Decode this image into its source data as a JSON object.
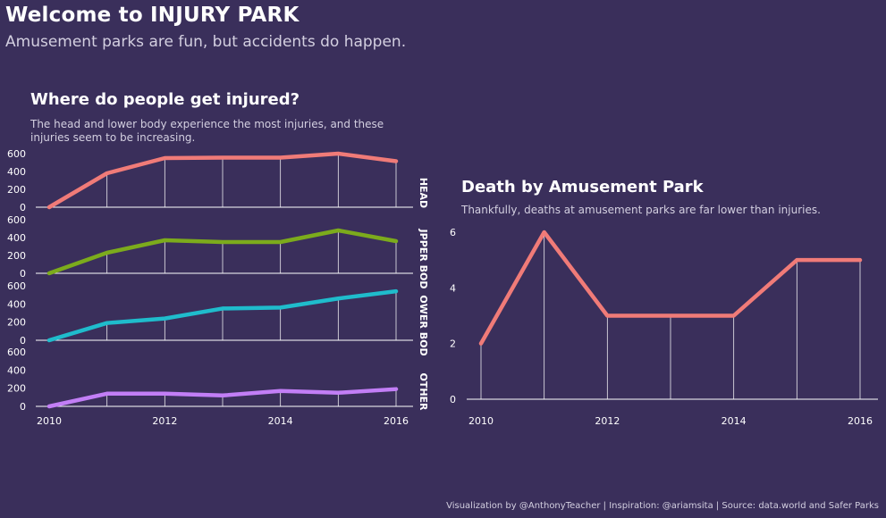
{
  "header": {
    "title": "Welcome to INJURY PARK",
    "subtitle": "Amusement parks are fun, but accidents do happen."
  },
  "left_section": {
    "title": "Where do people get injured?",
    "subtitle_line1": "The head and lower body experience the most injuries, and these",
    "subtitle_line2": "injuries seem to be increasing."
  },
  "right_section": {
    "title": "Death by Amusement Park",
    "subtitle": "Thankfully, deaths at amusement parks are far lower than injuries."
  },
  "footer": {
    "credit": "Visualization by @AnthonyTeacher  |  Inspiration: @ariamsita | Source: data.world and Safer Parks"
  },
  "colors": {
    "background": "#3a2f5b",
    "head": "#f07b78",
    "upper_body": "#7cab1c",
    "lower_body": "#1fbccc",
    "other": "#c27ef6",
    "deaths": "#f07b78"
  },
  "chart_data": [
    {
      "type": "line",
      "title": "",
      "x": [
        2010,
        2011,
        2012,
        2013,
        2014,
        2015,
        2016
      ],
      "x_ticks": [
        "2010",
        "2012",
        "2014",
        "2016"
      ],
      "ylim": [
        0,
        600
      ],
      "y_ticks": [
        "0",
        "200",
        "400",
        "600"
      ],
      "grid": false,
      "series": [
        {
          "name": "HEAD",
          "values": [
            0,
            380,
            550,
            555,
            555,
            600,
            515
          ]
        },
        {
          "name": "UPPER BODY",
          "values": [
            0,
            230,
            370,
            350,
            350,
            480,
            360
          ]
        },
        {
          "name": "LOWER BODY",
          "values": [
            0,
            190,
            240,
            350,
            360,
            460,
            540
          ]
        },
        {
          "name": "OTHER",
          "values": [
            0,
            140,
            140,
            120,
            170,
            150,
            190
          ]
        }
      ],
      "panel_labels_shown": [
        "HEAD",
        "JPPER BOD",
        "OWER BOD",
        "OTHER"
      ]
    },
    {
      "type": "line",
      "title": "Death by Amusement Park",
      "x": [
        2010,
        2011,
        2012,
        2013,
        2014,
        2015,
        2016
      ],
      "x_ticks": [
        "2010",
        "2012",
        "2014",
        "2016"
      ],
      "ylim": [
        0,
        6.3
      ],
      "y_ticks": [
        "0",
        "2",
        "4",
        "6"
      ],
      "grid": false,
      "series": [
        {
          "values": [
            2,
            6,
            3,
            3,
            3,
            5,
            5
          ]
        }
      ]
    }
  ]
}
